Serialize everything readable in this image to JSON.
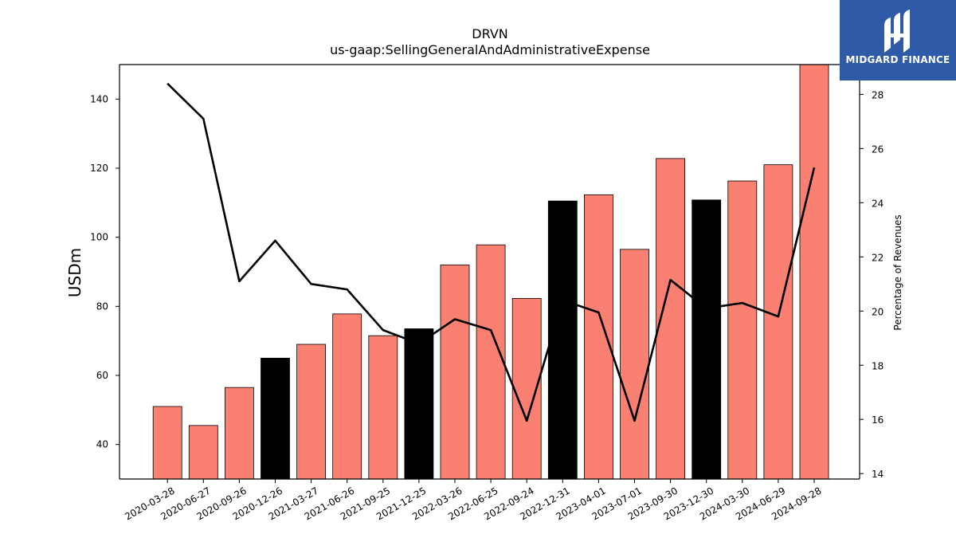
{
  "chart_data": {
    "type": "bar",
    "title": "DRVN",
    "subtitle": "us-gaap:SellingGeneralAndAdministrativeExpense",
    "ylabel": "USDm",
    "y2label": "Percentage of Revenues",
    "ylim": [
      30,
      150
    ],
    "y2lim": [
      13.8,
      29.1
    ],
    "yticks": [
      40,
      60,
      80,
      100,
      120,
      140
    ],
    "y2ticks": [
      14,
      16,
      18,
      20,
      22,
      24,
      26,
      28
    ],
    "categories": [
      "2020-03-28",
      "2020-06-27",
      "2020-09-26",
      "2020-12-26",
      "2021-03-27",
      "2021-06-26",
      "2021-09-25",
      "2021-12-25",
      "2022-03-26",
      "2022-06-25",
      "2022-09-24",
      "2022-12-31",
      "2023-04-01",
      "2023-07-01",
      "2023-09-30",
      "2023-12-30",
      "2024-03-30",
      "2024-06-29",
      "2024-09-28"
    ],
    "series": [
      {
        "kind": "bar",
        "values": [
          51.0,
          45.5,
          56.5,
          65.0,
          69.0,
          77.8,
          71.5,
          73.5,
          92.0,
          97.8,
          82.3,
          110.5,
          112.3,
          96.5,
          122.8,
          110.8,
          116.3,
          121.0,
          150.0
        ],
        "highlight": [
          false,
          false,
          false,
          true,
          false,
          false,
          false,
          true,
          false,
          false,
          false,
          true,
          false,
          false,
          false,
          true,
          false,
          false,
          false
        ],
        "color": "#fa8072",
        "highlight_color": "#000000"
      },
      {
        "kind": "line",
        "axis": "right",
        "values": [
          28.4,
          27.1,
          21.1,
          22.6,
          21.0,
          20.8,
          19.3,
          18.8,
          19.7,
          19.3,
          15.95,
          20.4,
          19.95,
          15.95,
          21.15,
          20.1,
          20.3,
          19.8,
          25.3
        ],
        "color": "#000000"
      }
    ]
  },
  "logo": {
    "text": "MIDGARD FINANCE",
    "color": "#2f5aa8"
  }
}
